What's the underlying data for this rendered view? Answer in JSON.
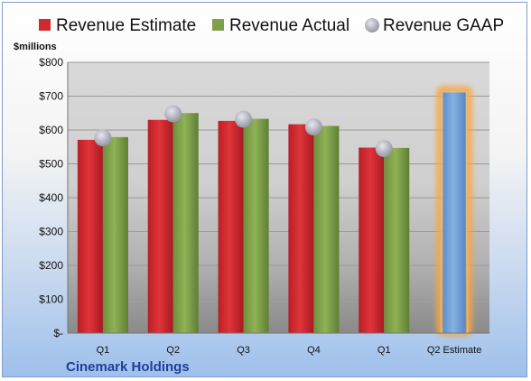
{
  "chart_data": {
    "type": "bar",
    "company": "Cinemark Holdings",
    "unit_label": "$millions",
    "categories": [
      "Q1",
      "Q2",
      "Q3",
      "Q4",
      "Q1",
      "Q2 Estimate"
    ],
    "series": [
      {
        "name": "Revenue Estimate",
        "kind": "bar",
        "color": "#c9262b",
        "values": [
          571,
          630,
          627,
          617,
          548,
          null
        ]
      },
      {
        "name": "Revenue Actual",
        "kind": "bar",
        "color": "#7fa04a",
        "values": [
          579,
          650,
          633,
          612,
          547,
          null
        ]
      },
      {
        "name": "Revenue GAAP",
        "kind": "marker",
        "color": "#a7a9b5",
        "values": [
          577,
          648,
          632,
          609,
          545,
          null
        ]
      },
      {
        "name": "Revenue Estimate",
        "kind": "bar-highlight",
        "color": "#6f9fd6",
        "values": [
          null,
          null,
          null,
          null,
          null,
          711
        ]
      }
    ],
    "ylim": [
      0,
      800
    ],
    "yticks": [
      {
        "value": 0,
        "label": "$-"
      },
      {
        "value": 100,
        "label": "$100"
      },
      {
        "value": 200,
        "label": "$200"
      },
      {
        "value": 300,
        "label": "$300"
      },
      {
        "value": 400,
        "label": "$400"
      },
      {
        "value": 500,
        "label": "$500"
      },
      {
        "value": 600,
        "label": "$600"
      },
      {
        "value": 700,
        "label": "$700"
      },
      {
        "value": 800,
        "label": "$800"
      }
    ],
    "legend": [
      {
        "label": "Revenue Estimate",
        "color": "#d02a30",
        "shape": "square"
      },
      {
        "label": "Revenue Actual",
        "color": "#7fa04a",
        "shape": "square"
      },
      {
        "label": "Revenue GAAP",
        "color": "#b4b6c0",
        "shape": "circle"
      }
    ],
    "legend_position": "top",
    "grid": true
  }
}
